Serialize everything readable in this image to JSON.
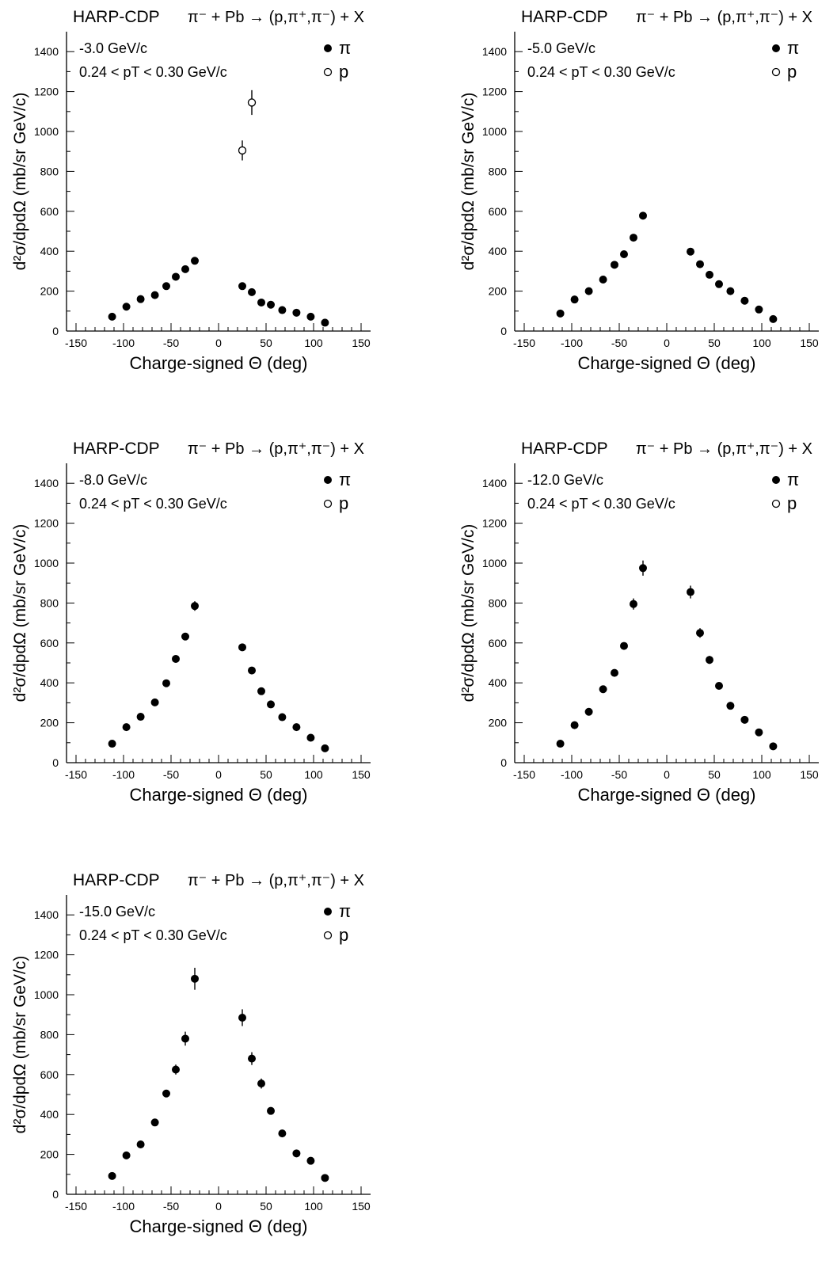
{
  "figure": {
    "background": "#ffffff",
    "ink": "#000000"
  },
  "chart_data": [
    {
      "type": "scatter",
      "title": "HARP-CDP",
      "reaction": "π⁻ + Pb → (p,π⁺,π⁻) + X",
      "momentum_label": "-3.0 GeV/c",
      "pt_label": "0.24 < pT < 0.30 GeV/c",
      "xlabel": "Charge-signed Θ (deg)",
      "ylabel": "d²σ/dpdΩ (mb/sr GeV/c)",
      "xlim": [
        -160,
        160
      ],
      "ylim": [
        0,
        1500
      ],
      "xticks": [
        -150,
        -100,
        -50,
        0,
        50,
        100,
        150
      ],
      "yticks": [
        0,
        200,
        400,
        600,
        800,
        1000,
        1200,
        1400
      ],
      "legend": [
        "π",
        "p"
      ],
      "series": [
        {
          "name": "π",
          "marker": "filled",
          "x": [
            -112,
            -97,
            -82,
            -67,
            -55,
            -45,
            -35,
            -25,
            25,
            35,
            45,
            55,
            67,
            82,
            97,
            112
          ],
          "y": [
            72,
            122,
            160,
            180,
            225,
            272,
            310,
            352,
            225,
            195,
            143,
            132,
            105,
            92,
            72,
            42
          ],
          "err": [
            6,
            8,
            8,
            9,
            9,
            10,
            11,
            12,
            9,
            9,
            8,
            8,
            7,
            7,
            6,
            5
          ]
        },
        {
          "name": "p",
          "marker": "open",
          "x": [
            25,
            35
          ],
          "y": [
            905,
            1145
          ],
          "err": [
            50,
            62
          ]
        }
      ]
    },
    {
      "type": "scatter",
      "title": "HARP-CDP",
      "reaction": "π⁻ + Pb → (p,π⁺,π⁻) + X",
      "momentum_label": "-5.0 GeV/c",
      "pt_label": "0.24 < pT < 0.30 GeV/c",
      "xlabel": "Charge-signed Θ (deg)",
      "ylabel": "d²σ/dpdΩ (mb/sr GeV/c)",
      "xlim": [
        -160,
        160
      ],
      "ylim": [
        0,
        1500
      ],
      "xticks": [
        -150,
        -100,
        -50,
        0,
        50,
        100,
        150
      ],
      "yticks": [
        0,
        200,
        400,
        600,
        800,
        1000,
        1200,
        1400
      ],
      "legend": [
        "π",
        "p"
      ],
      "series": [
        {
          "name": "π",
          "marker": "filled",
          "x": [
            -112,
            -97,
            -82,
            -67,
            -55,
            -45,
            -35,
            -25,
            25,
            35,
            45,
            55,
            67,
            82,
            97,
            112
          ],
          "y": [
            88,
            158,
            200,
            258,
            332,
            385,
            468,
            578,
            398,
            335,
            282,
            235,
            200,
            152,
            108,
            60
          ],
          "err": [
            6,
            8,
            9,
            10,
            11,
            12,
            14,
            18,
            13,
            11,
            10,
            9,
            8,
            7,
            6,
            5
          ]
        },
        {
          "name": "p",
          "marker": "open",
          "x": [],
          "y": [],
          "err": []
        }
      ]
    },
    {
      "type": "scatter",
      "title": "HARP-CDP",
      "reaction": "π⁻ + Pb → (p,π⁺,π⁻) + X",
      "momentum_label": "-8.0 GeV/c",
      "pt_label": "0.24 < pT < 0.30 GeV/c",
      "xlabel": "Charge-signed Θ (deg)",
      "ylabel": "d²σ/dpdΩ (mb/sr GeV/c)",
      "xlim": [
        -160,
        160
      ],
      "ylim": [
        0,
        1500
      ],
      "xticks": [
        -150,
        -100,
        -50,
        0,
        50,
        100,
        150
      ],
      "yticks": [
        0,
        200,
        400,
        600,
        800,
        1000,
        1200,
        1400
      ],
      "legend": [
        "π",
        "p"
      ],
      "series": [
        {
          "name": "π",
          "marker": "filled",
          "x": [
            -112,
            -97,
            -82,
            -67,
            -55,
            -45,
            -35,
            -25,
            25,
            35,
            45,
            55,
            67,
            82,
            97,
            112
          ],
          "y": [
            95,
            178,
            230,
            302,
            398,
            520,
            632,
            785,
            578,
            462,
            358,
            292,
            228,
            178,
            125,
            72
          ],
          "err": [
            6,
            8,
            9,
            10,
            12,
            15,
            18,
            24,
            17,
            14,
            11,
            10,
            9,
            8,
            7,
            5
          ]
        },
        {
          "name": "p",
          "marker": "open",
          "x": [],
          "y": [],
          "err": []
        }
      ]
    },
    {
      "type": "scatter",
      "title": "HARP-CDP",
      "reaction": "π⁻ + Pb → (p,π⁺,π⁻) + X",
      "momentum_label": "-12.0 GeV/c",
      "pt_label": "0.24 < pT < 0.30 GeV/c",
      "xlabel": "Charge-signed Θ (deg)",
      "ylabel": "d²σ/dpdΩ (mb/sr GeV/c)",
      "xlim": [
        -160,
        160
      ],
      "ylim": [
        0,
        1500
      ],
      "xticks": [
        -150,
        -100,
        -50,
        0,
        50,
        100,
        150
      ],
      "yticks": [
        0,
        200,
        400,
        600,
        800,
        1000,
        1200,
        1400
      ],
      "legend": [
        "π",
        "p"
      ],
      "series": [
        {
          "name": "π",
          "marker": "filled",
          "x": [
            -112,
            -97,
            -82,
            -67,
            -55,
            -45,
            -35,
            -25,
            25,
            35,
            45,
            55,
            67,
            82,
            97,
            112
          ],
          "y": [
            95,
            188,
            255,
            368,
            450,
            585,
            795,
            975,
            855,
            650,
            515,
            385,
            285,
            215,
            152,
            82
          ],
          "err": [
            6,
            8,
            9,
            11,
            13,
            18,
            28,
            38,
            32,
            24,
            20,
            13,
            11,
            9,
            8,
            6
          ]
        },
        {
          "name": "p",
          "marker": "open",
          "x": [],
          "y": [],
          "err": []
        }
      ]
    },
    {
      "type": "scatter",
      "title": "HARP-CDP",
      "reaction": "π⁻ + Pb → (p,π⁺,π⁻) + X",
      "momentum_label": "-15.0 GeV/c",
      "pt_label": "0.24 < pT < 0.30 GeV/c",
      "xlabel": "Charge-signed Θ (deg)",
      "ylabel": "d²σ/dpdΩ (mb/sr GeV/c)",
      "xlim": [
        -160,
        160
      ],
      "ylim": [
        0,
        1500
      ],
      "xticks": [
        -150,
        -100,
        -50,
        0,
        50,
        100,
        150
      ],
      "yticks": [
        0,
        200,
        400,
        600,
        800,
        1000,
        1200,
        1400
      ],
      "legend": [
        "π",
        "p"
      ],
      "series": [
        {
          "name": "π",
          "marker": "filled",
          "x": [
            -112,
            -97,
            -82,
            -67,
            -55,
            -45,
            -35,
            -25,
            25,
            35,
            45,
            55,
            67,
            82,
            97,
            112
          ],
          "y": [
            92,
            195,
            250,
            360,
            505,
            625,
            780,
            1080,
            885,
            680,
            555,
            418,
            305,
            205,
            168,
            82
          ],
          "err": [
            6,
            8,
            9,
            11,
            18,
            25,
            35,
            55,
            42,
            32,
            25,
            18,
            12,
            9,
            8,
            6
          ]
        },
        {
          "name": "p",
          "marker": "open",
          "x": [],
          "y": [],
          "err": []
        }
      ]
    }
  ]
}
